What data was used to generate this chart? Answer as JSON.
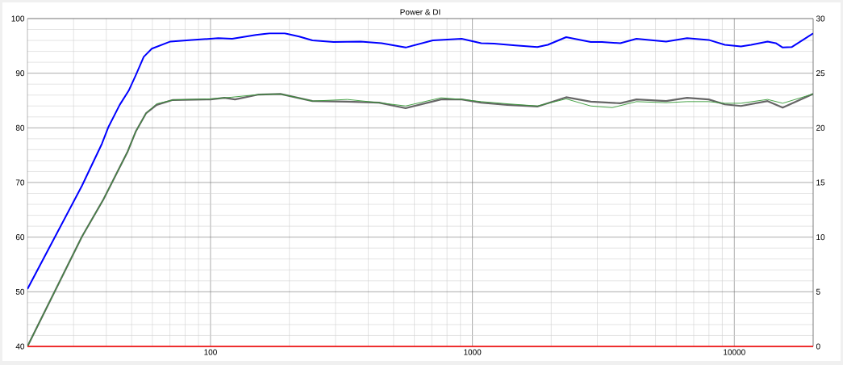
{
  "chart_data": {
    "type": "line",
    "title": "Power & DI",
    "log": "x",
    "grid": true,
    "xlim": [
      20,
      20000
    ],
    "xticks": [
      100,
      1000,
      10000
    ],
    "ylim": [
      40,
      100
    ],
    "yticks": [
      40,
      50,
      60,
      70,
      80,
      90,
      100
    ],
    "y2lim": [
      0,
      30
    ],
    "y2ticks": [
      0,
      5,
      10,
      15,
      20,
      25,
      30
    ],
    "series": [
      {
        "color": "#0000ff",
        "x": [
          20,
          32.3,
          38.5,
          40.8,
          45,
          48.7,
          51.8,
          55.6,
          59.7,
          70.3,
          84.9,
          100,
          107,
          121,
          149,
          168,
          192,
          218,
          245,
          295,
          374,
          450,
          556,
          706,
          910,
          1080,
          1210,
          1460,
          1770,
          1940,
          2280,
          2830,
          3120,
          3670,
          4230,
          5490,
          6600,
          7980,
          9200,
          10600,
          11600,
          13400,
          14400,
          15300,
          16600,
          20000
        ],
        "values": [
          50.5,
          69.4,
          77.1,
          80.2,
          84.2,
          86.8,
          89.6,
          93.0,
          94.5,
          95.8,
          96.1,
          96.3,
          96.4,
          96.3,
          97.0,
          97.3,
          97.3,
          96.7,
          96.0,
          95.7,
          95.8,
          95.5,
          94.7,
          96.0,
          96.3,
          95.5,
          95.4,
          95.1,
          94.8,
          95.2,
          96.6,
          95.7,
          95.7,
          95.5,
          96.3,
          95.8,
          96.4,
          96.1,
          95.2,
          94.9,
          95.2,
          95.8,
          95.5,
          94.7,
          94.8,
          97.3
        ]
      },
      {
        "color": "#339933",
        "x": [
          20,
          32.3,
          39,
          48.3,
          51.8,
          56.8,
          62.3,
          71.8,
          100,
          120,
          153,
          185,
          245,
          333,
          440,
          556,
          759,
          910,
          1080,
          1360,
          1770,
          2280,
          2830,
          3420,
          4230,
          5490,
          6600,
          7980,
          9200,
          10600,
          13400,
          15300,
          20000
        ],
        "values": [
          40,
          60.1,
          66.9,
          75.7,
          79.3,
          82.7,
          84.4,
          85.1,
          85.3,
          85.6,
          86.1,
          86.2,
          84.9,
          85.2,
          84.6,
          84.0,
          85.5,
          85.2,
          84.8,
          84.4,
          84.0,
          85.3,
          84.0,
          83.7,
          84.8,
          84.6,
          84.8,
          84.8,
          84.5,
          84.5,
          85.2,
          84.5,
          86.2
        ]
      },
      {
        "color": "#666666",
        "x": [
          20,
          32.3,
          39,
          48.3,
          51.8,
          56.8,
          62.3,
          71.8,
          100,
          113,
          124,
          153,
          185,
          245,
          333,
          440,
          556,
          759,
          910,
          1080,
          1360,
          1770,
          2280,
          2830,
          3670,
          4230,
          5490,
          6600,
          7980,
          9200,
          10600,
          13400,
          15300,
          20000
        ],
        "values": [
          40,
          60.1,
          66.9,
          75.7,
          79.3,
          82.7,
          84.2,
          85.1,
          85.2,
          85.5,
          85.2,
          86.1,
          86.2,
          84.9,
          84.8,
          84.6,
          83.6,
          85.2,
          85.2,
          84.6,
          84.2,
          83.9,
          85.6,
          84.8,
          84.5,
          85.2,
          84.9,
          85.5,
          85.2,
          84.3,
          84.0,
          84.9,
          83.7,
          86.2
        ]
      },
      {
        "color": "#ff0000",
        "axis": "y2",
        "x": [
          20,
          20000
        ],
        "values": [
          0,
          0
        ]
      }
    ]
  }
}
